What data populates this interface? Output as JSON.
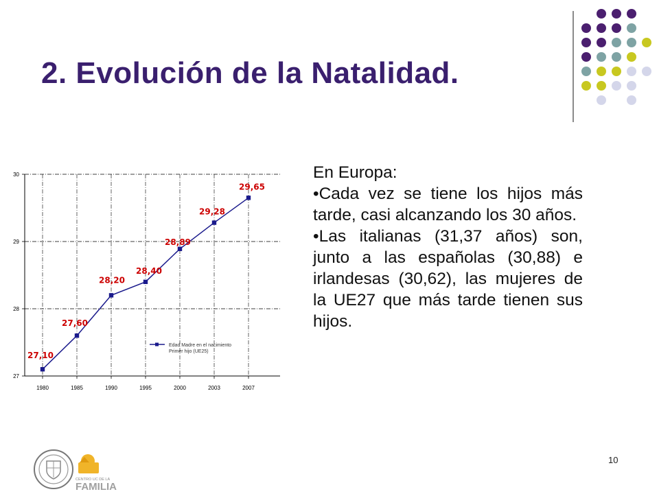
{
  "slide": {
    "title": "2. Evolución de la Natalidad.",
    "page_number": "10"
  },
  "body": {
    "heading": "En Europa:",
    "bullets": [
      "•Cada vez se tiene los hijos más tarde, casi alcanzando los 30 años.",
      "•Las italianas (31,37 años) son, junto a las españolas (30,88) e irlandesas (30,62), las mujeres de la UE27 que más tarde tienen sus hijos."
    ]
  },
  "logos": {
    "familia_lettering": [
      "CENTRO UC DE LA",
      "FAMILIA"
    ]
  },
  "colors": {
    "title": "#3a1f6e",
    "series": "#1a1a8c",
    "data_label": "#cc0000",
    "dot_purple": "#4b1f6f",
    "dot_teal": "#7ea3a4",
    "dot_olive": "#c8c820",
    "dot_lavender": "#d4d6ea"
  },
  "chart_data": {
    "type": "line",
    "categories": [
      "1980",
      "1985",
      "1990",
      "1995",
      "2000",
      "2003",
      "2007"
    ],
    "series": [
      {
        "name": "Edad Madre en el nacimiento Primer hijo (UE25)",
        "values": [
          27.1,
          27.6,
          28.2,
          28.4,
          28.89,
          29.28,
          29.65
        ],
        "labels": [
          "27,10",
          "27,60",
          "28,20",
          "28,40",
          "28,89",
          "29,28",
          "29,65"
        ]
      }
    ],
    "ylim": [
      27,
      30
    ],
    "yticks": [
      "27",
      "28",
      "29",
      "30"
    ],
    "grid": true,
    "legend_placement": "bottom-right",
    "title": "",
    "xlabel": "",
    "ylabel": ""
  }
}
